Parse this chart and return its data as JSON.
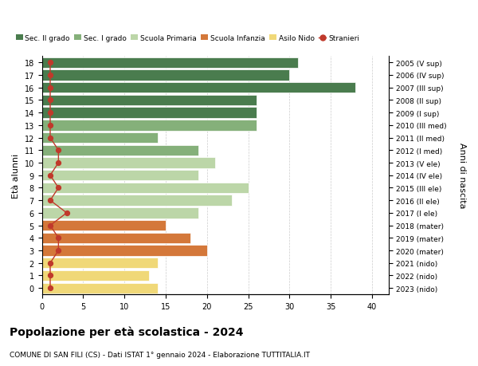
{
  "ages": [
    18,
    17,
    16,
    15,
    14,
    13,
    12,
    11,
    10,
    9,
    8,
    7,
    6,
    5,
    4,
    3,
    2,
    1,
    0
  ],
  "values": [
    31,
    30,
    38,
    26,
    26,
    26,
    14,
    19,
    21,
    19,
    25,
    23,
    19,
    15,
    18,
    20,
    14,
    13,
    14
  ],
  "stranieri": [
    1,
    1,
    1,
    1,
    1,
    1,
    1,
    2,
    2,
    1,
    2,
    1,
    3,
    1,
    2,
    2,
    1,
    1,
    1
  ],
  "right_labels_by_age": {
    "18": "2005 (V sup)",
    "17": "2006 (IV sup)",
    "16": "2007 (III sup)",
    "15": "2008 (II sup)",
    "14": "2009 (I sup)",
    "13": "2010 (III med)",
    "12": "2011 (II med)",
    "11": "2012 (I med)",
    "10": "2013 (V ele)",
    "9": "2014 (IV ele)",
    "8": "2015 (III ele)",
    "7": "2016 (II ele)",
    "6": "2017 (I ele)",
    "5": "2018 (mater)",
    "4": "2019 (mater)",
    "3": "2020 (mater)",
    "2": "2021 (nido)",
    "1": "2022 (nido)",
    "0": "2023 (nido)"
  },
  "bar_colors_by_age": {
    "18": "#4a7c4e",
    "17": "#4a7c4e",
    "16": "#4a7c4e",
    "15": "#4a7c4e",
    "14": "#4a7c4e",
    "13": "#85b07a",
    "12": "#85b07a",
    "11": "#85b07a",
    "10": "#bcd6a8",
    "9": "#bcd6a8",
    "8": "#bcd6a8",
    "7": "#bcd6a8",
    "6": "#bcd6a8",
    "5": "#d4783a",
    "4": "#d4783a",
    "3": "#d4783a",
    "2": "#f0d878",
    "1": "#f0d878",
    "0": "#f0d878"
  },
  "legend_colors": [
    "#4a7c4e",
    "#85b07a",
    "#bcd6a8",
    "#d4783a",
    "#f0d878",
    "#c0392b"
  ],
  "legend_labels": [
    "Sec. II grado",
    "Sec. I grado",
    "Scuola Primaria",
    "Scuola Infanzia",
    "Asilo Nido",
    "Stranieri"
  ],
  "ylabel_left": "Età alunni",
  "ylabel_right": "Anni di nascita",
  "title": "Popolazione per età scolastica - 2024",
  "subtitle": "COMUNE DI SAN FILI (CS) - Dati ISTAT 1° gennaio 2024 - Elaborazione TUTTITALIA.IT",
  "xlim": [
    0,
    42
  ],
  "ylim": [
    -0.5,
    18.5
  ],
  "yticks": [
    0,
    1,
    2,
    3,
    4,
    5,
    6,
    7,
    8,
    9,
    10,
    11,
    12,
    13,
    14,
    15,
    16,
    17,
    18
  ],
  "xticks": [
    0,
    5,
    10,
    15,
    20,
    25,
    30,
    35,
    40
  ],
  "stranieri_color": "#c0392b",
  "background_color": "#ffffff",
  "grid_color": "#cccccc"
}
